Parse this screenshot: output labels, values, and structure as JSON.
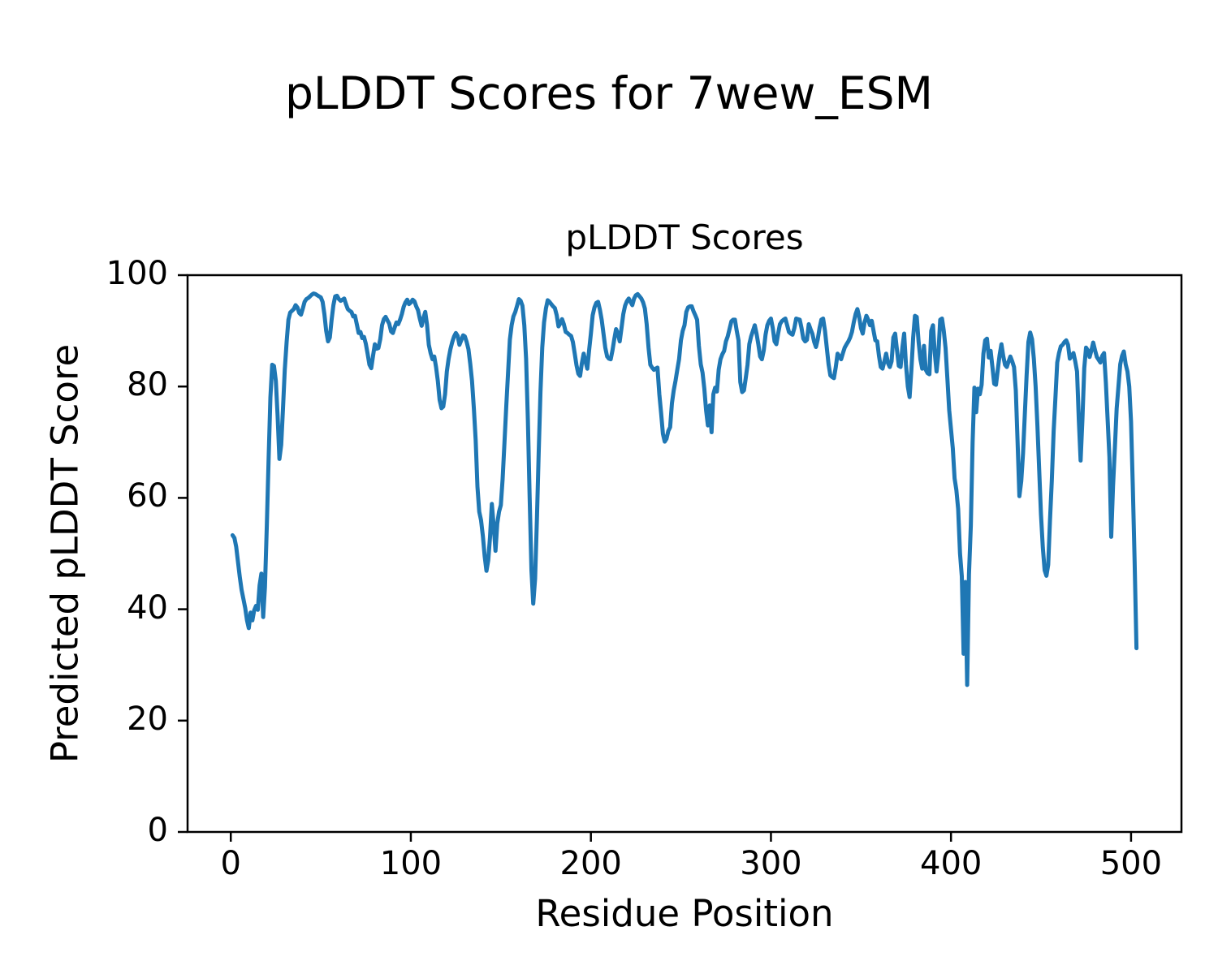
{
  "figure": {
    "suptitle": "pLDDT Scores for 7wew_ESM"
  },
  "chart_data": {
    "type": "line",
    "title": "pLDDT Scores",
    "xlabel": "Residue Position",
    "ylabel": "Predicted pLDDT Score",
    "xlim": [
      -24,
      528
    ],
    "ylim": [
      0,
      100
    ],
    "x_ticks": [
      0,
      100,
      200,
      300,
      400,
      500
    ],
    "y_ticks": [
      0,
      20,
      40,
      60,
      80,
      100
    ],
    "grid": false,
    "legend": "none",
    "line_color": "#1f77b4",
    "x_start": 1,
    "x_step": 1,
    "values": [
      53.3,
      52.8,
      51.2,
      48.5,
      45.8,
      43.5,
      41.9,
      40.2,
      38.0,
      36.6,
      39.4,
      38.0,
      39.8,
      40.6,
      39.9,
      44.3,
      46.4,
      38.6,
      44.0,
      55.0,
      67.0,
      78.0,
      83.9,
      83.7,
      81.0,
      74.7,
      67.0,
      69.5,
      76.0,
      83.0,
      88.0,
      92.0,
      93.3,
      93.6,
      93.9,
      94.6,
      94.2,
      93.2,
      92.9,
      94.0,
      95.2,
      95.7,
      95.9,
      96.2,
      96.5,
      96.7,
      96.6,
      96.4,
      96.2,
      96.0,
      95.2,
      93.0,
      90.0,
      88.1,
      88.8,
      92.0,
      94.6,
      96.2,
      96.3,
      95.7,
      95.4,
      95.6,
      95.8,
      94.8,
      93.9,
      93.6,
      93.4,
      92.6,
      92.7,
      91.2,
      89.6,
      89.8,
      88.7,
      88.9,
      87.7,
      85.9,
      83.9,
      83.3,
      85.5,
      87.6,
      86.8,
      86.9,
      88.5,
      91.0,
      92.1,
      92.5,
      91.9,
      91.3,
      89.9,
      89.6,
      90.6,
      91.5,
      91.2,
      92.0,
      93.0,
      94.3,
      95.1,
      95.6,
      94.8,
      95.1,
      95.6,
      95.3,
      94.4,
      93.7,
      92.2,
      90.9,
      92.3,
      93.4,
      91.1,
      87.5,
      86.0,
      84.9,
      85.4,
      83.5,
      81.0,
      77.6,
      76.1,
      76.4,
      78.6,
      82.7,
      85.0,
      86.7,
      88.0,
      89.0,
      89.6,
      89.1,
      87.5,
      88.3,
      89.2,
      89.0,
      88.0,
      86.7,
      84.1,
      81.0,
      76.0,
      70.4,
      62.0,
      57.5,
      56.0,
      53.1,
      49.5,
      46.9,
      48.8,
      53.0,
      58.9,
      55.0,
      50.5,
      55.4,
      57.5,
      58.7,
      63.4,
      70.0,
      76.5,
      82.5,
      88.4,
      91.0,
      92.6,
      93.4,
      94.5,
      95.7,
      95.4,
      94.5,
      91.0,
      85.0,
      74.0,
      60.0,
      47.0,
      41.0,
      45.5,
      56.0,
      68.0,
      79.0,
      87.0,
      91.5,
      94.0,
      95.5,
      95.2,
      94.8,
      94.4,
      94.1,
      92.8,
      90.8,
      91.3,
      92.1,
      91.2,
      89.8,
      89.6,
      89.3,
      89.1,
      88.0,
      86.0,
      83.8,
      82.3,
      81.9,
      84.2,
      85.9,
      84.5,
      83.2,
      86.5,
      89.5,
      92.8,
      94.2,
      95.0,
      95.2,
      93.8,
      92.0,
      89.5,
      87.0,
      85.4,
      85.0,
      84.9,
      86.5,
      88.5,
      90.3,
      89.5,
      88.1,
      90.5,
      93.0,
      94.5,
      95.3,
      95.8,
      95.2,
      94.6,
      95.8,
      96.4,
      96.6,
      96.2,
      95.8,
      95.1,
      94.0,
      91.2,
      87.0,
      83.9,
      83.4,
      83.0,
      83.2,
      83.4,
      78.6,
      75.2,
      71.5,
      70.1,
      70.6,
      72.0,
      72.7,
      77.0,
      79.3,
      81.0,
      83.0,
      84.9,
      88.3,
      90.0,
      91.0,
      93.4,
      94.2,
      94.4,
      94.4,
      93.5,
      92.8,
      92.0,
      87.3,
      84.0,
      82.5,
      79.6,
      75.7,
      73.0,
      76.6,
      71.8,
      78.6,
      79.8,
      79.1,
      83.0,
      84.9,
      85.8,
      86.4,
      88.1,
      89.0,
      90.3,
      91.7,
      92.0,
      92.0,
      90.0,
      88.3,
      80.8,
      79.0,
      79.3,
      81.5,
      83.9,
      87.6,
      89.0,
      90.0,
      91.0,
      89.5,
      87.6,
      85.4,
      84.9,
      86.5,
      89.3,
      91.0,
      91.8,
      92.2,
      90.5,
      88.1,
      87.6,
      89.5,
      91.2,
      91.7,
      92.0,
      92.2,
      91.0,
      89.8,
      89.5,
      89.3,
      90.5,
      92.2,
      92.1,
      92.0,
      90.5,
      88.6,
      88.1,
      88.4,
      91.2,
      90.3,
      89.5,
      88.0,
      87.1,
      88.5,
      90.5,
      92.0,
      92.2,
      90.0,
      87.0,
      84.0,
      82.0,
      81.7,
      81.5,
      83.5,
      85.9,
      85.4,
      84.9,
      86.0,
      87.0,
      87.6,
      88.1,
      88.8,
      89.8,
      91.5,
      93.0,
      93.9,
      92.5,
      90.5,
      89.5,
      91.5,
      92.7,
      92.0,
      91.0,
      91.8,
      90.0,
      88.3,
      88.1,
      85.5,
      83.5,
      83.2,
      84.5,
      85.9,
      84.2,
      83.5,
      84.5,
      88.8,
      89.5,
      86.5,
      83.7,
      83.5,
      87.0,
      89.5,
      84.0,
      80.0,
      78.1,
      83.0,
      88.8,
      92.7,
      92.5,
      88.0,
      84.9,
      83.2,
      87.3,
      83.0,
      82.4,
      82.2,
      90.0,
      91.0,
      86.0,
      82.7,
      86.0,
      92.0,
      92.2,
      90.0,
      86.9,
      81.5,
      75.7,
      72.3,
      68.9,
      63.5,
      61.4,
      58.0,
      50.0,
      45.9,
      32.0,
      44.9,
      26.4,
      46.2,
      55.0,
      70.0,
      79.8,
      75.4,
      79.6,
      78.6,
      80.3,
      85.9,
      88.3,
      88.6,
      85.2,
      86.4,
      83.5,
      80.5,
      80.3,
      83.0,
      85.6,
      87.6,
      85.5,
      83.9,
      83.5,
      84.5,
      85.4,
      84.5,
      83.5,
      79.3,
      70.0,
      60.3,
      63.0,
      68.0,
      75.0,
      82.0,
      88.0,
      89.7,
      88.5,
      85.0,
      80.0,
      73.0,
      65.0,
      57.0,
      51.0,
      47.0,
      46.0,
      48.0,
      56.0,
      63.0,
      72.0,
      78.0,
      84.3,
      86.0,
      87.2,
      87.5,
      88.0,
      88.3,
      87.5,
      85.0,
      85.5,
      86.0,
      84.5,
      82.7,
      74.0,
      66.7,
      74.0,
      83.3,
      87.0,
      86.5,
      85.3,
      86.5,
      87.9,
      86.5,
      85.3,
      84.8,
      84.3,
      85.5,
      86.0,
      80.7,
      74.0,
      67.3,
      53.0,
      62.0,
      69.0,
      76.0,
      80.0,
      84.0,
      85.5,
      86.3,
      84.0,
      82.7,
      80.0,
      73.7,
      62.0,
      48.7,
      33.0
    ]
  }
}
